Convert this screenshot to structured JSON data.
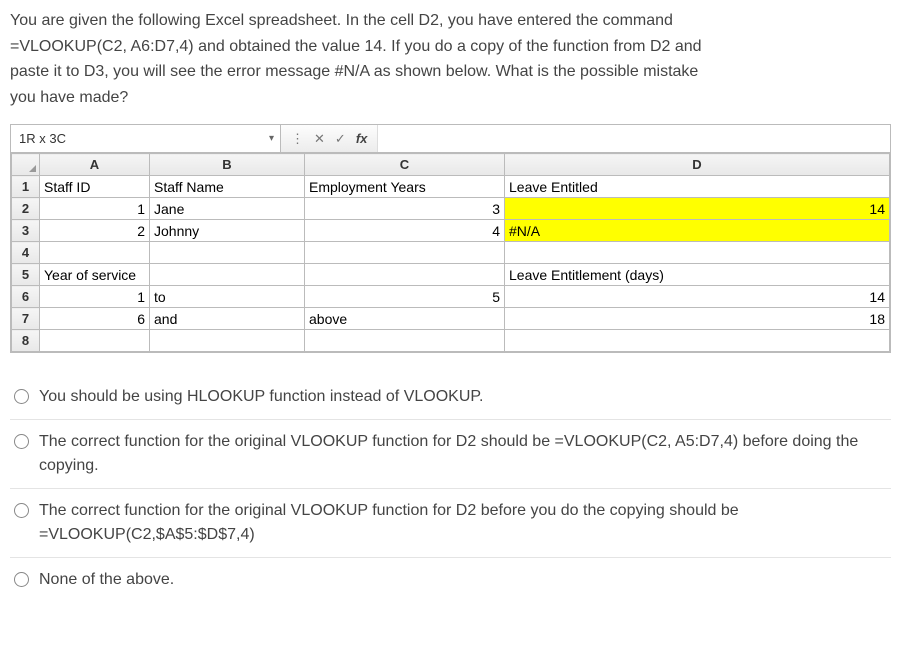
{
  "question": {
    "line1": "You are given the following Excel spreadsheet. In the cell D2, you have entered the command",
    "line2": "=VLOOKUP(C2, A6:D7,4) and obtained the value  14. If you do a copy of the function from D2 and",
    "line3": "paste it to D3, you will see the error message #N/A as shown below. What is the possible mistake",
    "line4": "you have made?"
  },
  "excel": {
    "name_box": "1R x 3C",
    "fb_icons": {
      "dots": "⋮",
      "x": "✕",
      "check": "✓",
      "fx": "fx"
    },
    "col_widths": {
      "rowhdr": "28px",
      "A": "110px",
      "B": "155px",
      "C": "200px",
      "D": "245px"
    },
    "headers": [
      "A",
      "B",
      "C",
      "D"
    ],
    "rows": [
      {
        "n": "1",
        "A": "Staff ID",
        "B": "Staff Name",
        "C": "Employment Years",
        "D": "Leave Entitled",
        "bold": true
      },
      {
        "n": "2",
        "A": "1",
        "B": "Jane",
        "C": "3",
        "D": "14",
        "A_num": true,
        "C_num": true,
        "D_num": true,
        "D_hl": true
      },
      {
        "n": "3",
        "A": "2",
        "B": "Johnny",
        "C": "4",
        "D": "#N/A",
        "A_num": true,
        "C_num": true,
        "D_err": true,
        "D_hl": true
      },
      {
        "n": "4",
        "A": "",
        "B": "",
        "C": "",
        "D": ""
      },
      {
        "n": "5",
        "A": "Year of service",
        "B": "",
        "C": "",
        "D": "Leave Entitlement (days)",
        "bold": true
      },
      {
        "n": "6",
        "A": "1",
        "B": "to",
        "C": "5",
        "D": "14",
        "A_num": true,
        "C_num": true,
        "D_num": true
      },
      {
        "n": "7",
        "A": "6",
        "B": "and",
        "C": "above",
        "D": "18",
        "A_num": true,
        "D_num": true
      },
      {
        "n": "8",
        "A": "",
        "B": "",
        "C": "",
        "D": ""
      }
    ]
  },
  "options": [
    {
      "text": "You should be using HLOOKUP function instead of VLOOKUP."
    },
    {
      "text": "The correct function for the original VLOOKUP function for D2 should be =VLOOKUP(C2, A5:D7,4) before doing the copying."
    },
    {
      "text": "The correct function for the original VLOOKUP function for D2 before you do the copying should be =VLOOKUP(C2,$A$5:$D$7,4)"
    },
    {
      "text": "None of the above."
    }
  ]
}
